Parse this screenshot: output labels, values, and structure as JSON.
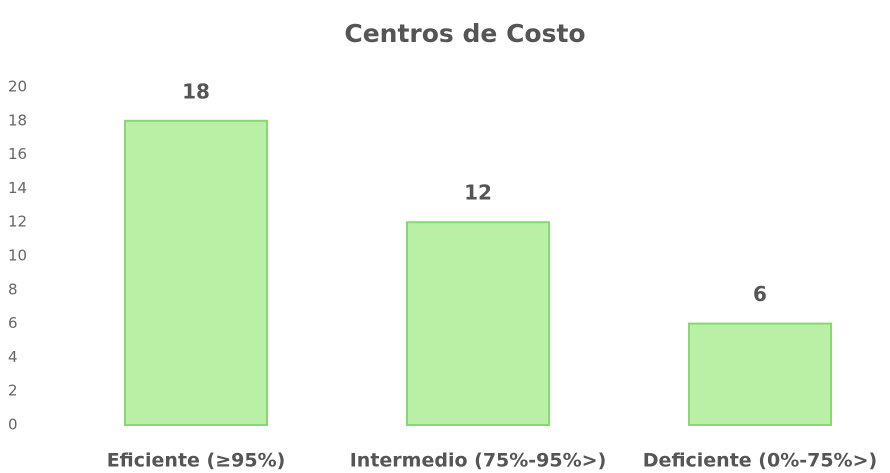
{
  "chart_data": {
    "type": "bar",
    "title": "Centros de Costo",
    "categories": [
      "Eficiente (≥95%)",
      "Intermedio (75%-95%>)",
      "Deficiente (0%-75%>)"
    ],
    "values": [
      18,
      12,
      6
    ],
    "color": "#b9f0a5",
    "ylim": [
      0,
      20
    ],
    "yticks": [
      0,
      2,
      4,
      6,
      8,
      10,
      12,
      14,
      16,
      18,
      20
    ],
    "grid": false
  }
}
